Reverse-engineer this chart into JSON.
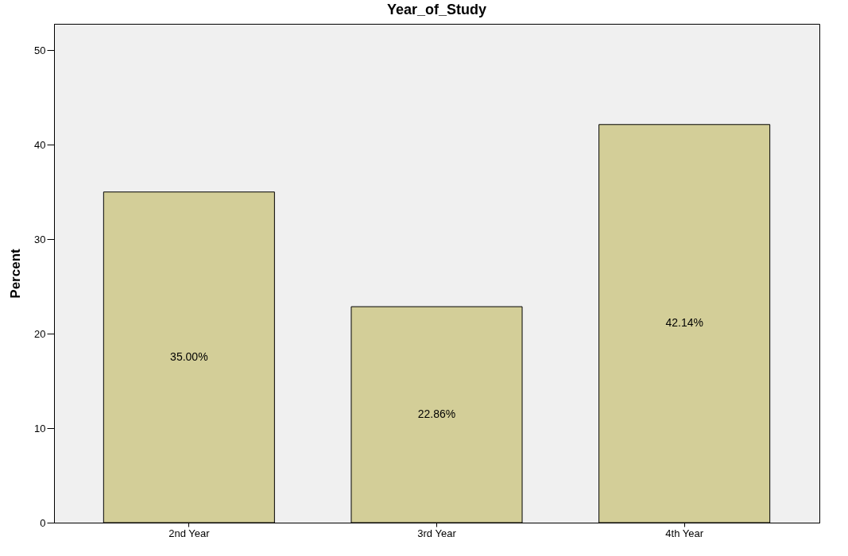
{
  "chart_data": {
    "type": "bar",
    "title": "Year_of_Study",
    "ylabel": "Percent",
    "categories": [
      "2nd Year",
      "3rd Year",
      "4th Year"
    ],
    "values": [
      35.0,
      22.86,
      42.14
    ],
    "value_labels": [
      "35.00%",
      "22.86%",
      "42.14%"
    ],
    "color": "#d3ce98",
    "ylim": [
      0,
      52.8
    ],
    "yticks": [
      0,
      10,
      20,
      30,
      40,
      50
    ],
    "grid": false
  }
}
